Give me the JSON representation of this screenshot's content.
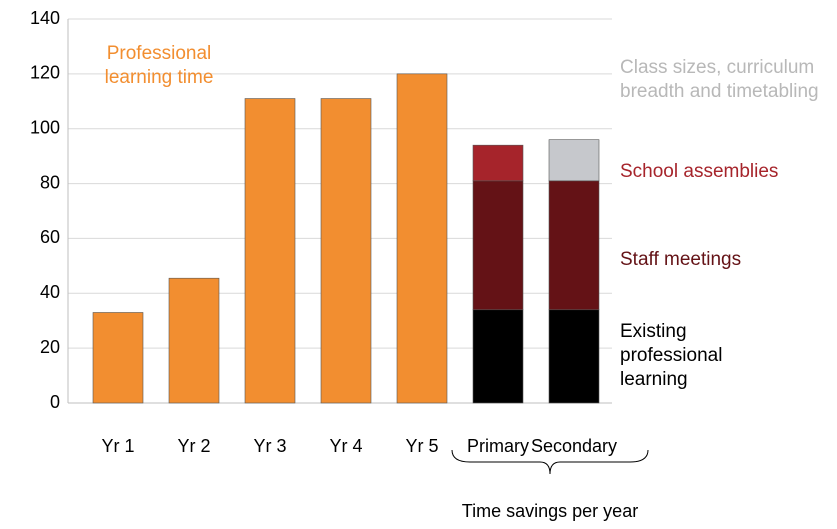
{
  "chart_data": {
    "type": "stacked_bar",
    "categories": [
      "Yr 1",
      "Yr 2",
      "Yr 3",
      "Yr 4",
      "Yr 5",
      "Primary",
      "Secondary"
    ],
    "series": [
      {
        "name": "Professional learning time",
        "color": "#f28e30",
        "values": [
          33,
          45.5,
          111,
          111,
          120,
          null,
          null
        ]
      },
      {
        "name": "Existing professional learning",
        "color": "#000000",
        "values": [
          null,
          null,
          null,
          null,
          null,
          34,
          34
        ]
      },
      {
        "name": "Staff meetings",
        "color": "#641216",
        "values": [
          null,
          null,
          null,
          null,
          null,
          47,
          47
        ]
      },
      {
        "name": "School assemblies",
        "color": "#a6242b",
        "values": [
          null,
          null,
          null,
          null,
          null,
          13,
          null
        ]
      },
      {
        "name": "Class sizes, curriculum breadth and timetabling",
        "color": "#c6c8cc",
        "values": [
          null,
          null,
          null,
          null,
          null,
          null,
          15
        ]
      }
    ],
    "annotation": "Time savings per year",
    "ylim": [
      0,
      140
    ],
    "yticks": [
      0,
      20,
      40,
      60,
      80,
      100,
      120,
      140
    ],
    "grid": true
  }
}
